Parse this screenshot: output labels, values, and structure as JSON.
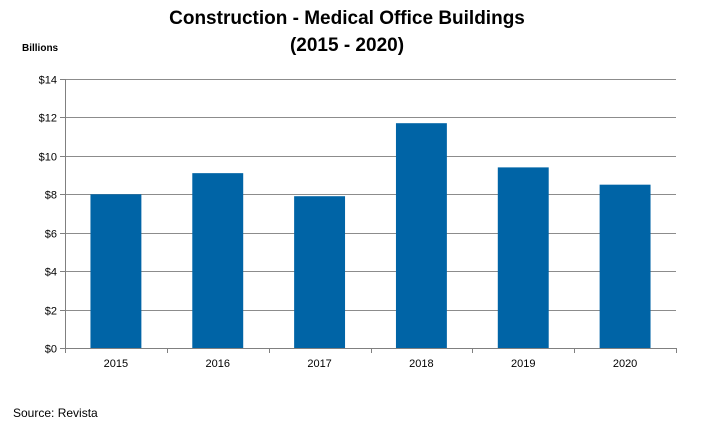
{
  "chart_data": {
    "type": "bar",
    "title": "Construction - Medical Office Buildings",
    "subtitle": "(2015 - 2020)",
    "unit_label": "Billions",
    "xlabel": "",
    "ylabel": "",
    "categories": [
      "2015",
      "2016",
      "2017",
      "2018",
      "2019",
      "2020"
    ],
    "values": [
      8.0,
      9.1,
      7.9,
      11.7,
      9.4,
      8.5
    ],
    "ylim": [
      0,
      14
    ],
    "ytick_values": [
      0,
      2,
      4,
      6,
      8,
      10,
      12,
      14
    ],
    "ytick_labels": [
      "$0",
      "$2",
      "$4",
      "$6",
      "$8",
      "$10",
      "$12",
      "$14"
    ],
    "grid": true,
    "bar_color": "#0064A6",
    "grid_color": "#8C8C8C",
    "axis_color": "#808080"
  },
  "source": "Source: Revista"
}
